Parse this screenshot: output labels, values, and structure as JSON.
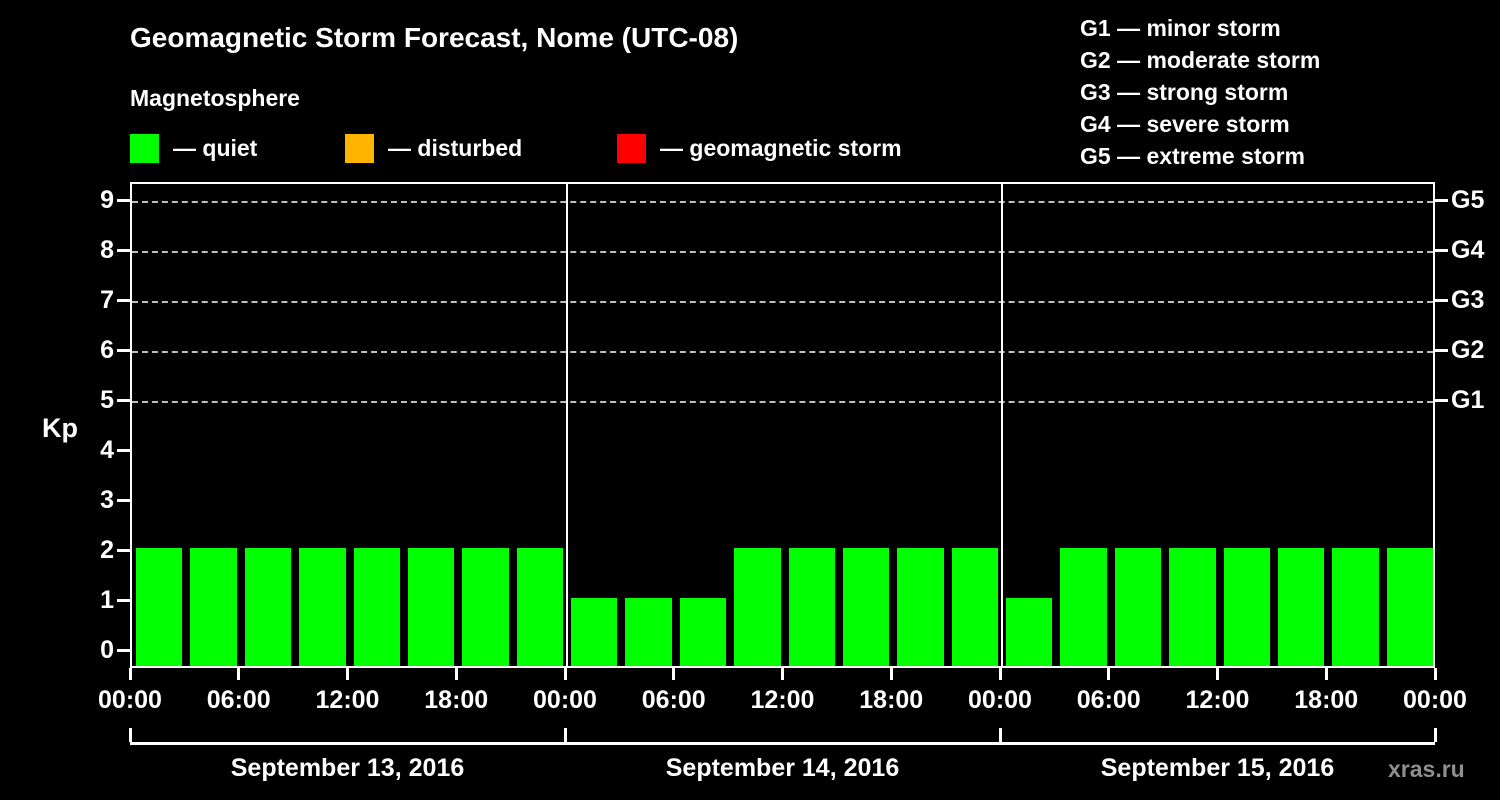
{
  "title": "Geomagnetic Storm Forecast, Nome (UTC-08)",
  "subtitle": "Magnetosphere",
  "legend": {
    "quiet": {
      "label": "— quiet",
      "color": "#00ff00"
    },
    "disturbed": {
      "label": "— disturbed",
      "color": "#ffb400"
    },
    "storm": {
      "label": "— geomagnetic storm",
      "color": "#ff0000"
    }
  },
  "g_legend": [
    "G1 — minor storm",
    "G2 — moderate storm",
    "G3 — strong storm",
    "G4 — severe storm",
    "G5 — extreme storm"
  ],
  "watermark": "xras.ru",
  "chart_data": {
    "type": "bar",
    "title": "Geomagnetic Storm Forecast, Nome (UTC-08)",
    "ylabel": "Kp",
    "ylim": [
      0,
      9
    ],
    "yticks": [
      0,
      1,
      2,
      3,
      4,
      5,
      6,
      7,
      8,
      9
    ],
    "gridline_kp": [
      5,
      6,
      7,
      8,
      9
    ],
    "right_axis": [
      {
        "label": "G1",
        "kp": 5
      },
      {
        "label": "G2",
        "kp": 6
      },
      {
        "label": "G3",
        "kp": 7
      },
      {
        "label": "G4",
        "kp": 8
      },
      {
        "label": "G5",
        "kp": 9
      }
    ],
    "bar_color": "#00ff00",
    "interval_hours": 3,
    "x_tick_labels": [
      "00:00",
      "06:00",
      "12:00",
      "18:00",
      "00:00",
      "06:00",
      "12:00",
      "18:00",
      "00:00",
      "06:00",
      "12:00",
      "18:00",
      "00:00"
    ],
    "days": [
      {
        "date": "September 13, 2016",
        "values": [
          2,
          2,
          2,
          2,
          2,
          2,
          2,
          2
        ]
      },
      {
        "date": "September 14, 2016",
        "values": [
          1,
          1,
          1,
          2,
          2,
          2,
          2,
          2
        ]
      },
      {
        "date": "September 15, 2016",
        "values": [
          1,
          2,
          2,
          2,
          2,
          2,
          2,
          2
        ]
      }
    ]
  }
}
